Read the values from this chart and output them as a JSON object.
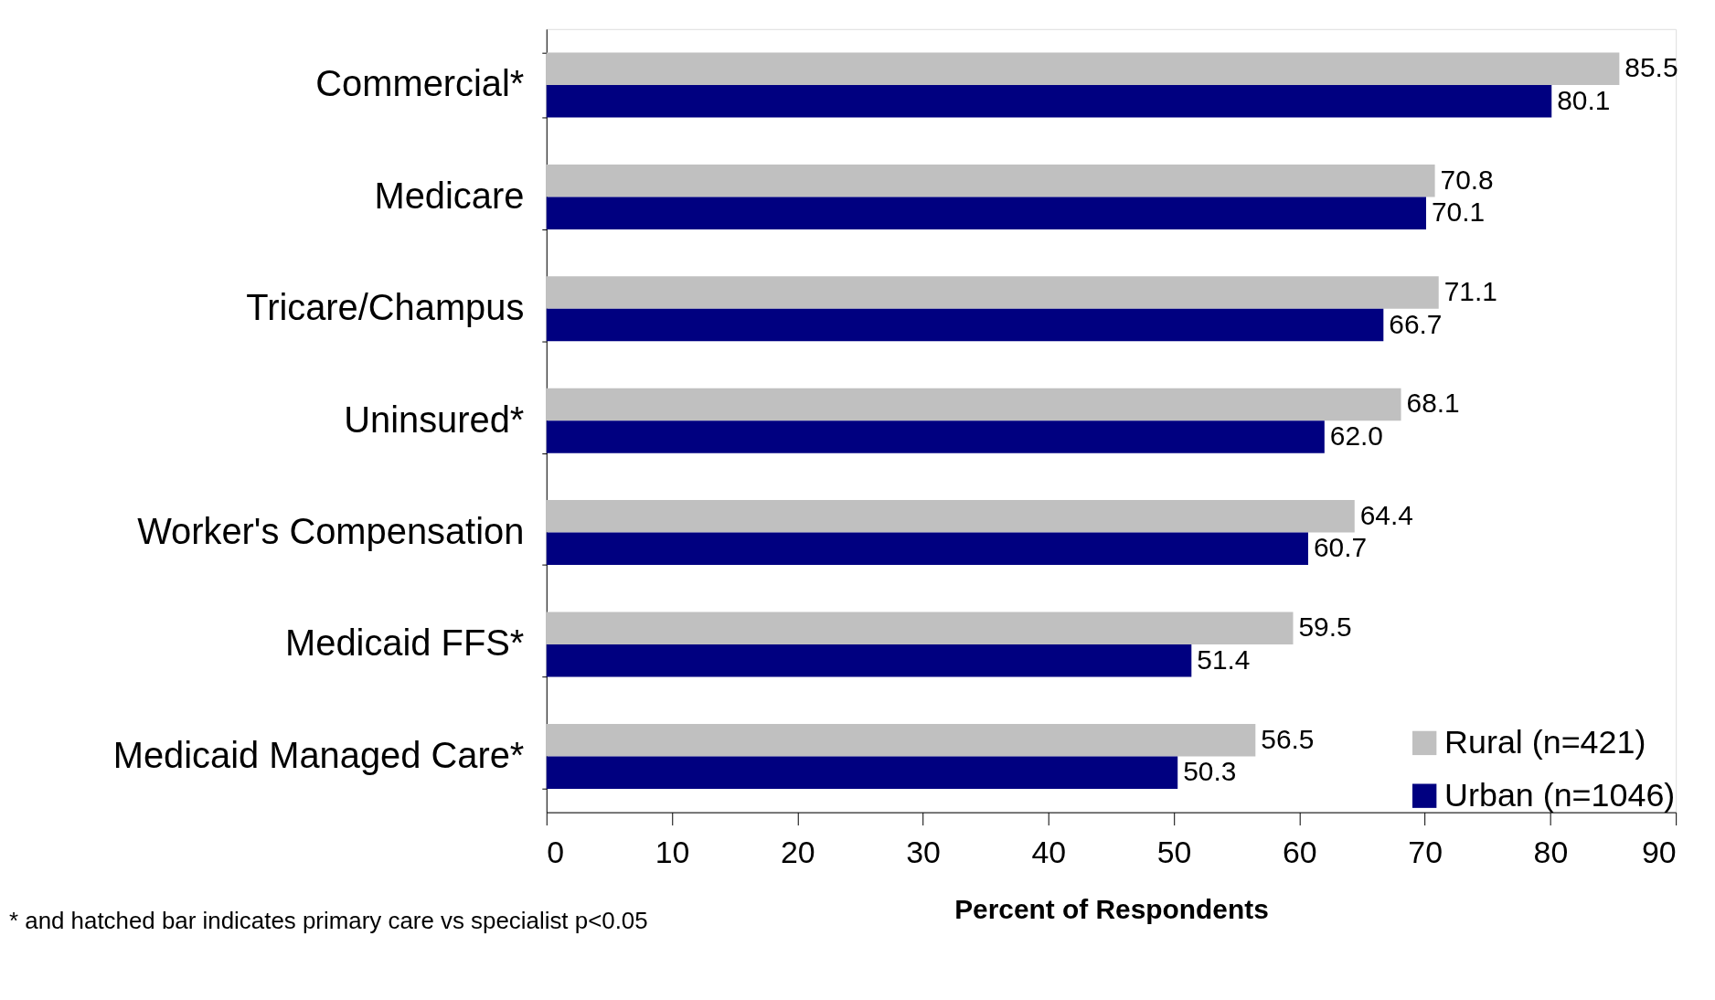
{
  "chart_data": {
    "type": "bar",
    "orientation": "horizontal",
    "xlabel": "Percent of Respondents",
    "categories": [
      "Commercial*",
      "Medicare",
      "Tricare/Champus",
      "Uninsured*",
      "Worker's Compensation",
      "Medicaid FFS*",
      "Medicaid Managed Care*"
    ],
    "series": [
      {
        "name": "Rural (n=421)",
        "color": "#c0c0c0",
        "values": [
          85.5,
          70.8,
          71.1,
          68.1,
          64.4,
          59.5,
          56.5
        ]
      },
      {
        "name": "Urban (n=1046)",
        "color": "#000080",
        "values": [
          80.1,
          70.1,
          66.7,
          62.0,
          60.7,
          51.4,
          50.3
        ]
      }
    ],
    "value_labels": [
      [
        "85.5",
        "70.8",
        "71.1",
        "68.1",
        "64.4",
        "59.5",
        "56.5"
      ],
      [
        "80.1",
        "70.1",
        "66.7",
        "62.0",
        "60.7",
        "51.4",
        "50.3"
      ]
    ],
    "xlim": [
      0,
      90
    ],
    "xticks": [
      0,
      10,
      20,
      30,
      40,
      50,
      60,
      70,
      80,
      90
    ],
    "grid": false,
    "legend": "bottom right",
    "annotations": [
      "* and hatched bar indicates primary care vs specialist p<0.05"
    ]
  }
}
